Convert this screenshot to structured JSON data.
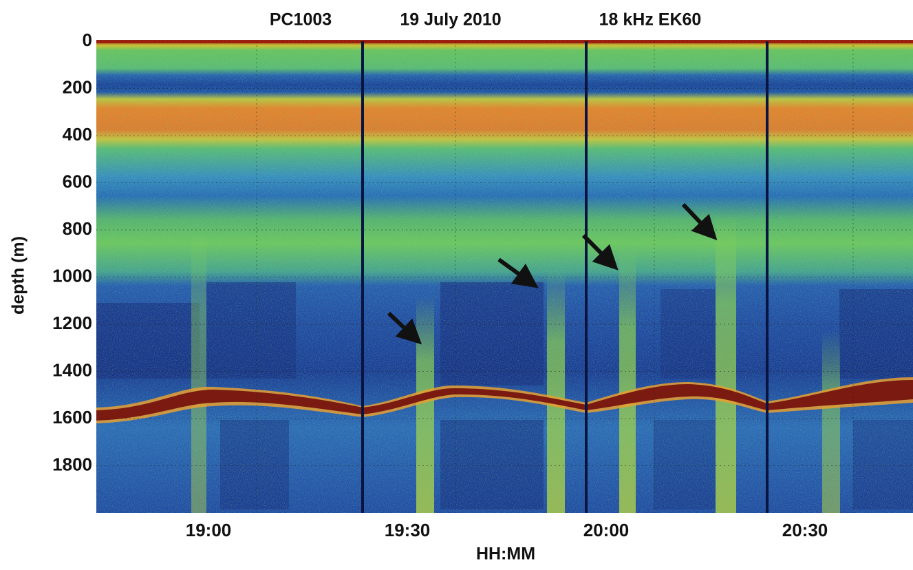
{
  "chart_data": {
    "type": "echogram",
    "title_parts": [
      "PC1003",
      "19 July 2010",
      "18 kHz EK60"
    ],
    "xlabel": "HH:MM",
    "ylabel": "depth (m)",
    "xticks": [
      "19:00",
      "19:30",
      "20:00",
      "20:30"
    ],
    "ylim": [
      0,
      2000
    ],
    "yticks": [
      0,
      200,
      400,
      600,
      800,
      1000,
      1200,
      1400,
      1600,
      1800
    ],
    "y_inverted": true,
    "grid": true
  }
}
